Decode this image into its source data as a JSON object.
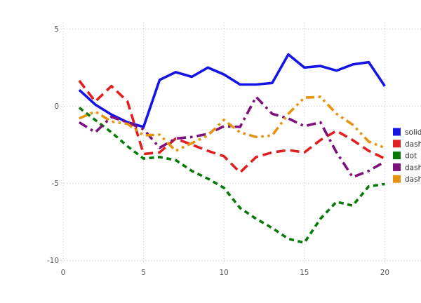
{
  "chart": {
    "background": "#ffffff",
    "grid_color": "#d0d0d0",
    "tick_label_color": "#585858",
    "legend_text_color": "#303030"
  },
  "chart_data": {
    "type": "line",
    "title": "",
    "xlabel": "",
    "ylabel": "",
    "x": [
      1,
      2,
      3,
      4,
      5,
      6,
      7,
      8,
      9,
      10,
      11,
      12,
      13,
      14,
      15,
      16,
      17,
      18,
      19,
      20
    ],
    "xlim": [
      0,
      20
    ],
    "ylim": [
      -10,
      5
    ],
    "x_ticks": [
      0,
      5,
      10,
      15,
      20
    ],
    "x_tick_labels": [
      "0",
      "5",
      "10",
      "15",
      "20"
    ],
    "y_ticks": [
      5,
      0,
      -5,
      -10
    ],
    "y_tick_labels": [
      "5",
      "0",
      "-5",
      "-10"
    ],
    "grid": true,
    "grid_style": "dotted",
    "legend_position": "right",
    "series": [
      {
        "name": "solid",
        "color": "#1414e6",
        "line_style": "solid",
        "values": [
          1.05,
          0.1,
          -0.55,
          -1.05,
          -1.35,
          1.7,
          2.2,
          1.9,
          2.5,
          2.05,
          1.4,
          1.4,
          1.5,
          3.35,
          2.5,
          2.6,
          2.3,
          2.7,
          2.85,
          1.3
        ]
      },
      {
        "name": "dash",
        "color": "#e02020",
        "line_style": "dash",
        "values": [
          1.65,
          0.3,
          1.3,
          0.3,
          -3.1,
          -3.0,
          -2.1,
          -2.5,
          -2.9,
          -3.25,
          -4.3,
          -3.3,
          -3.0,
          -2.85,
          -3.0,
          -2.2,
          -1.6,
          -2.2,
          -2.9,
          -3.4
        ]
      },
      {
        "name": "dot",
        "color": "#067a06",
        "line_style": "dot",
        "values": [
          -0.1,
          -0.9,
          -1.7,
          -2.6,
          -3.4,
          -3.3,
          -3.5,
          -4.2,
          -4.7,
          -5.3,
          -6.6,
          -7.3,
          -7.9,
          -8.6,
          -8.85,
          -7.3,
          -6.2,
          -6.45,
          -5.2,
          -5.05
        ]
      },
      {
        "name": "dashdot",
        "color": "#7d107d",
        "line_style": "dashdot",
        "values": [
          -1.05,
          -1.7,
          -0.7,
          -1.05,
          -1.5,
          -2.7,
          -2.1,
          -2.0,
          -1.8,
          -1.3,
          -1.35,
          0.6,
          -0.5,
          -0.8,
          -1.3,
          -1.05,
          -3.0,
          -4.6,
          -4.2,
          -3.6
        ]
      },
      {
        "name": "dashdotdot",
        "color": "#e6940e",
        "line_style": "dashdotdot",
        "values": [
          -0.8,
          -0.35,
          -1.0,
          -1.15,
          -1.9,
          -1.85,
          -2.9,
          -2.4,
          -1.9,
          -0.9,
          -1.7,
          -2.0,
          -1.9,
          -0.5,
          0.55,
          0.6,
          -0.5,
          -1.2,
          -2.3,
          -2.7
        ]
      }
    ]
  }
}
